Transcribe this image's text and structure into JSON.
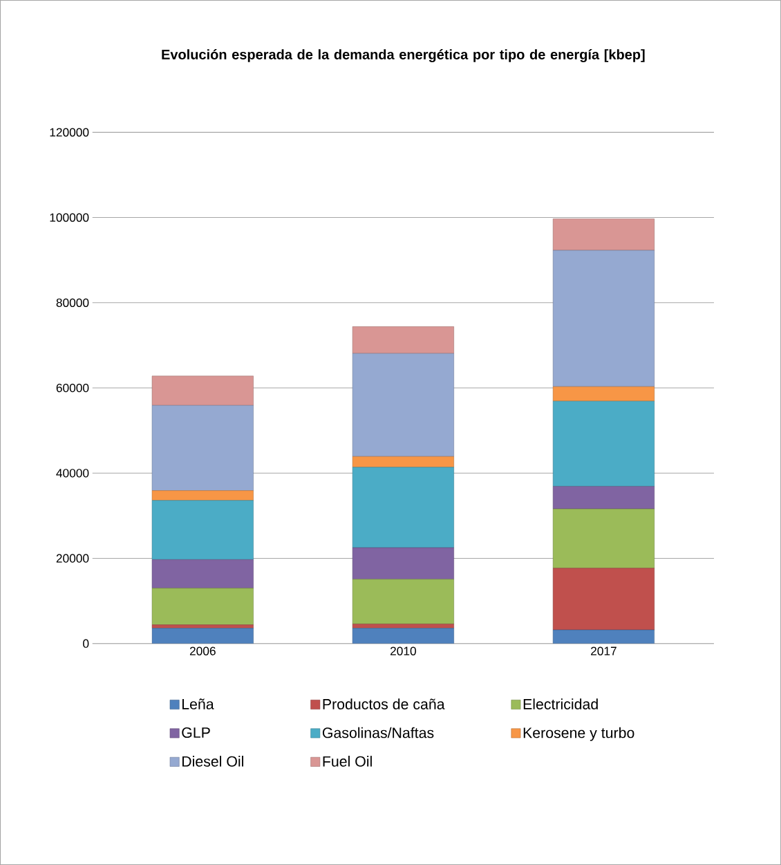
{
  "chart_data": {
    "type": "bar",
    "stacked": true,
    "title": "Evolución esperada de la demanda energética por tipo de energía [kbep]",
    "categories": [
      "2006",
      "2010",
      "2017"
    ],
    "series": [
      {
        "name": "Leña",
        "color": "#4f81bd",
        "values": [
          3600,
          3600,
          3200
        ]
      },
      {
        "name": "Productos de caña",
        "color": "#c0504d",
        "values": [
          800,
          1000,
          14500
        ]
      },
      {
        "name": "Electricidad",
        "color": "#9bbb59",
        "values": [
          8600,
          10500,
          13900
        ]
      },
      {
        "name": "GLP",
        "color": "#8064a2",
        "values": [
          6700,
          7400,
          5300
        ]
      },
      {
        "name": "Gasolinas/Naftas",
        "color": "#4bacc6",
        "values": [
          13900,
          18900,
          20000
        ]
      },
      {
        "name": "Kerosene y turbo",
        "color": "#f79646",
        "values": [
          2300,
          2500,
          3400
        ]
      },
      {
        "name": "Diesel Oil",
        "color": "#95a9d1",
        "values": [
          20000,
          24200,
          32000
        ]
      },
      {
        "name": "Fuel Oil",
        "color": "#d99694",
        "values": [
          6900,
          6300,
          7400
        ]
      }
    ],
    "ylim": [
      0,
      120000
    ],
    "yticks": [
      0,
      20000,
      40000,
      60000,
      80000,
      100000,
      120000
    ],
    "grid": "y",
    "legend": "bottom"
  }
}
